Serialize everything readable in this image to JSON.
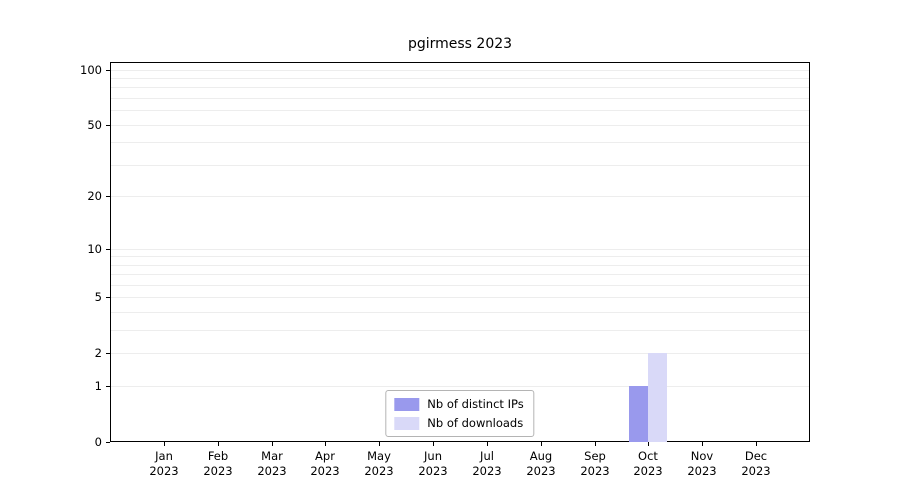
{
  "chart_data": {
    "type": "bar",
    "title": "pgirmess 2023",
    "categories": [
      "Jan",
      "Feb",
      "Mar",
      "Apr",
      "May",
      "Jun",
      "Jul",
      "Aug",
      "Sep",
      "Oct",
      "Nov",
      "Dec"
    ],
    "year": "2023",
    "series": [
      {
        "name": "Nb of distinct IPs",
        "color": "#9999ed",
        "values": [
          0,
          0,
          0,
          0,
          0,
          0,
          0,
          0,
          0,
          1,
          0,
          0
        ]
      },
      {
        "name": "Nb of downloads",
        "color": "#d9d9f8",
        "values": [
          0,
          0,
          0,
          0,
          0,
          0,
          0,
          0,
          0,
          2,
          0,
          0
        ]
      }
    ],
    "y_ticks": [
      0,
      1,
      2,
      5,
      10,
      20,
      50,
      100
    ],
    "minor_gridlines": [
      1,
      2,
      3,
      4,
      5,
      6,
      7,
      8,
      9,
      10,
      20,
      30,
      40,
      50,
      60,
      70,
      80,
      90,
      100
    ],
    "scale": "log1p",
    "ylim": [
      0,
      110
    ],
    "grid": "horizontal",
    "legend_position": "bottom-center",
    "xlabel": "",
    "ylabel": ""
  },
  "colors": {
    "gridline": "#ededed",
    "axis": "#000000",
    "legend_border": "#b4b4b4"
  }
}
